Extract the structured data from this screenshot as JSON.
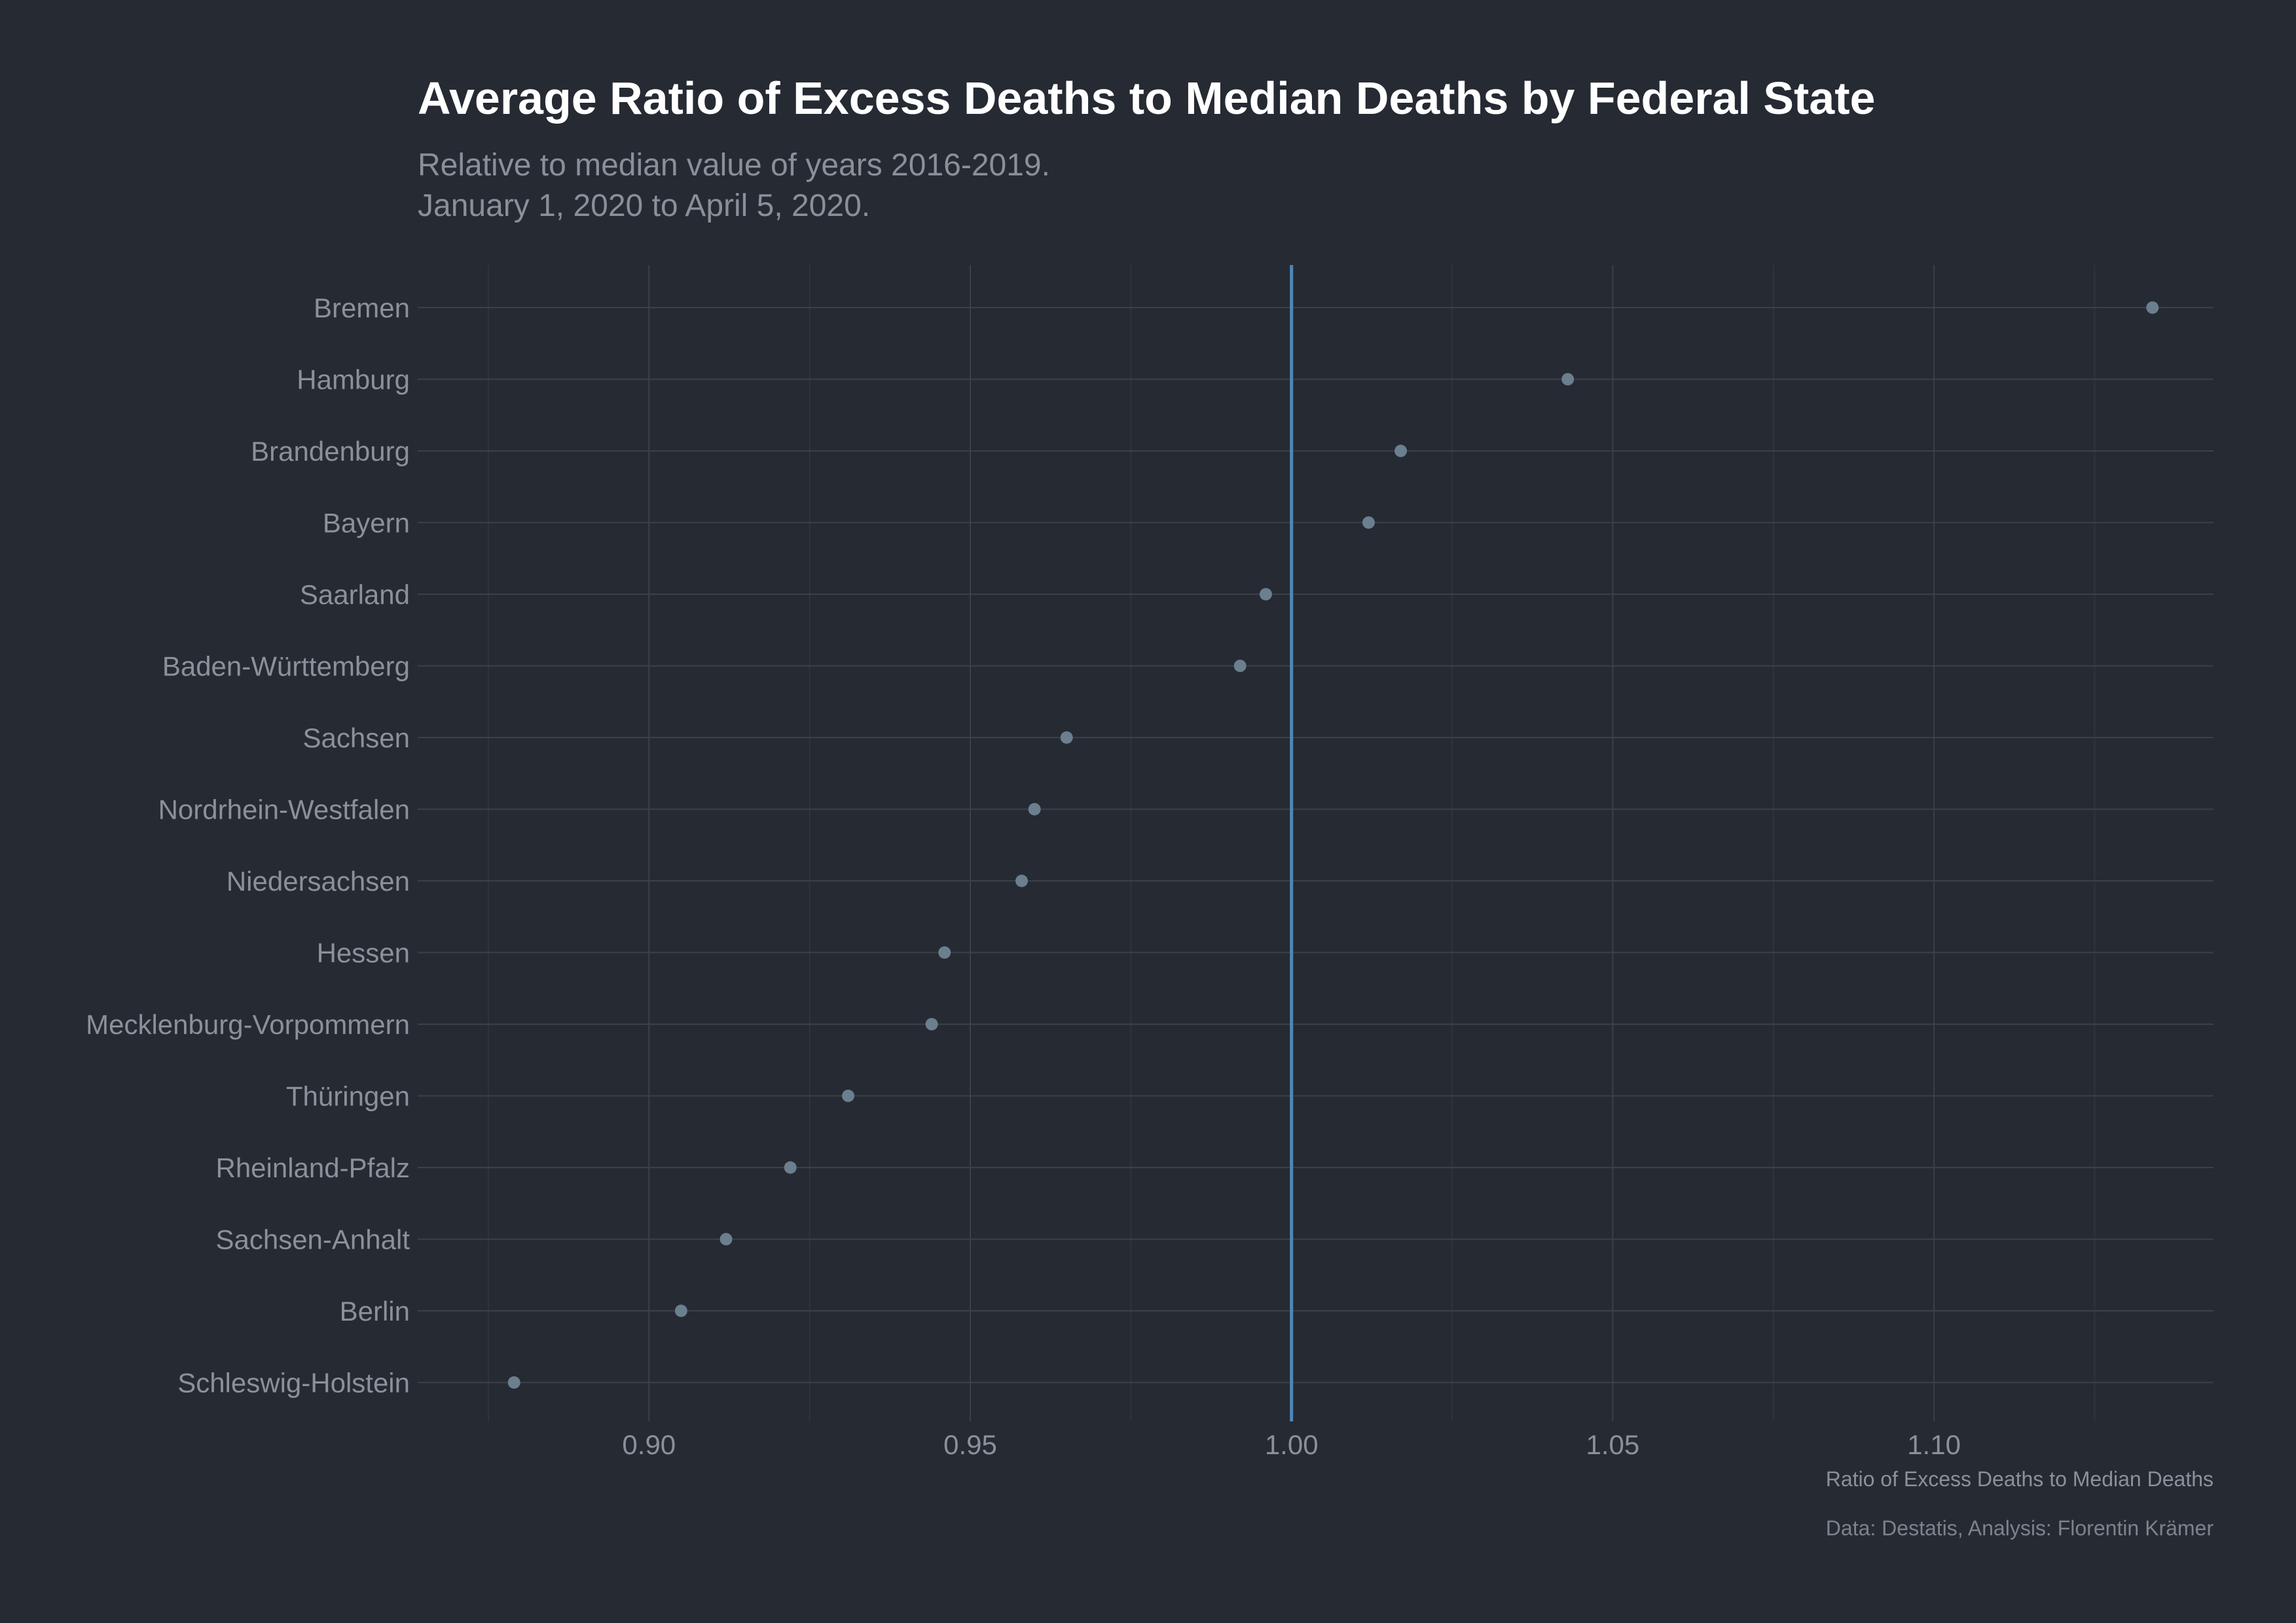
{
  "chart_data": {
    "type": "scatter",
    "title": "Average Ratio of Excess Deaths to Median Deaths by Federal State",
    "subtitle": [
      "Relative to median value of years 2016-2019.",
      "January 1, 2020 to April 5, 2020."
    ],
    "xlabel": "Ratio of Excess Deaths to Median Deaths",
    "ylabel": "",
    "caption": "Data: Destatis, Analysis: Florentin Krämer",
    "xlim": [
      0.864,
      1.1435
    ],
    "xticks": [
      0.9,
      0.95,
      1.0,
      1.05,
      1.1
    ],
    "xtick_labels": [
      "0.90",
      "0.95",
      "1.00",
      "1.05",
      "1.10"
    ],
    "reference_line": 1.0,
    "grid": true,
    "legend": "none",
    "colors": {
      "background": "#252a33",
      "point": "#6b7f8e",
      "reference_line": "#4f86b5",
      "title": "#ffffff",
      "text": "#8c9199"
    },
    "categories": [
      "Bremen",
      "Hamburg",
      "Brandenburg",
      "Bayern",
      "Saarland",
      "Baden-Württemberg",
      "Sachsen",
      "Nordrhein-Westfalen",
      "Niedersachsen",
      "Hessen",
      "Mecklenburg-Vorpommern",
      "Thüringen",
      "Rheinland-Pfalz",
      "Sachsen-Anhalt",
      "Berlin",
      "Schleswig-Holstein"
    ],
    "values": [
      1.134,
      1.043,
      1.017,
      1.012,
      0.996,
      0.992,
      0.965,
      0.96,
      0.958,
      0.946,
      0.944,
      0.931,
      0.922,
      0.912,
      0.905,
      0.879
    ]
  }
}
